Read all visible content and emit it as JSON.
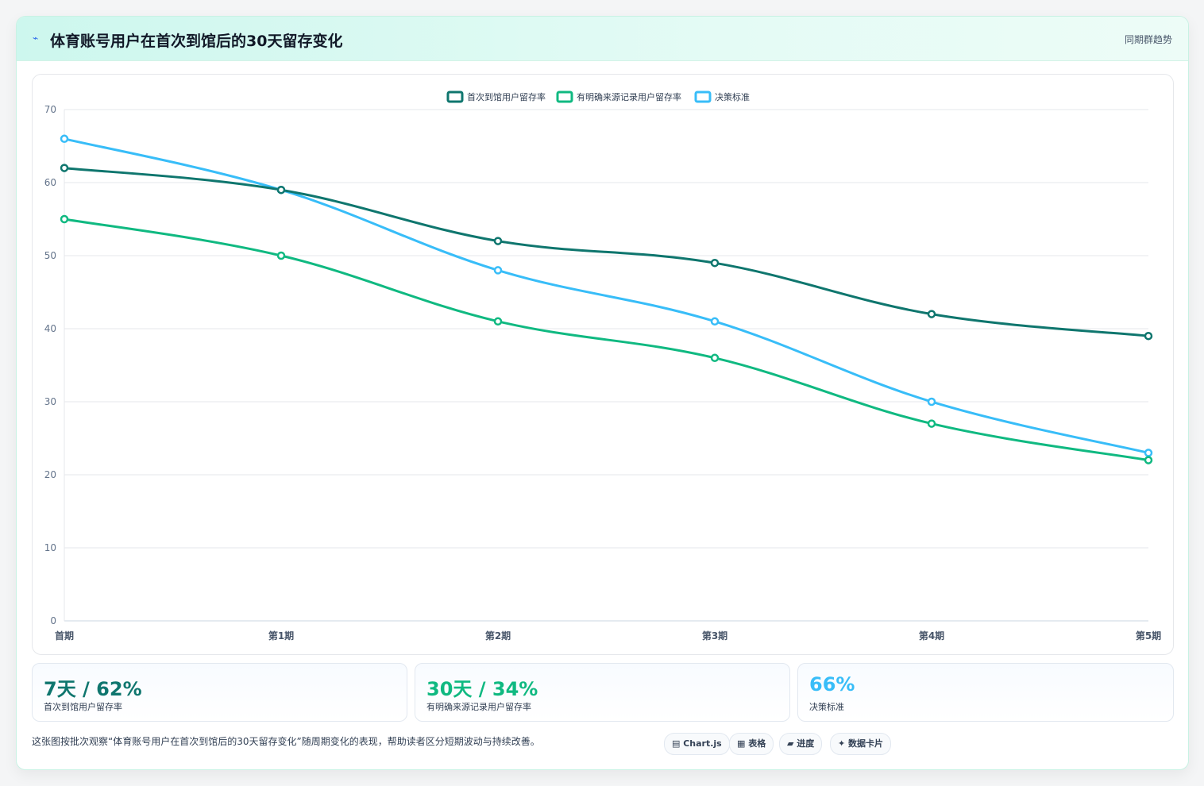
{
  "header": {
    "icon": "lightning-icon",
    "title": "体育账号用户在首次到馆后的30天留存变化",
    "right_label": "同期群趋势"
  },
  "chart_data": {
    "type": "line",
    "categories": [
      "首期",
      "第1期",
      "第2期",
      "第3期",
      "第4期",
      "第5期"
    ],
    "series": [
      {
        "name": "首次到馆用户留存率",
        "color": "#0f766e",
        "values": [
          62,
          59,
          52,
          49,
          42,
          39
        ]
      },
      {
        "name": "有明确来源记录用户留存率",
        "color": "#10b981",
        "values": [
          55,
          50,
          41,
          36,
          27,
          22
        ]
      },
      {
        "name": "决策标准",
        "color": "#38bdf8",
        "values": [
          66,
          59,
          48,
          41,
          30,
          23
        ]
      }
    ],
    "ylim": [
      0,
      70
    ],
    "yticks": [
      0,
      10,
      20,
      30,
      40,
      50,
      60,
      70
    ],
    "grid": true,
    "legend": "top-center"
  },
  "stats": [
    {
      "value": "7天 / 62%",
      "label": "首次到馆用户留存率",
      "color": "#0f766e"
    },
    {
      "value": "30天 / 34%",
      "label": "有明确来源记录用户留存率",
      "color": "#10b981"
    },
    {
      "value": "66%",
      "label": "决策标准",
      "color": "#38bdf8"
    }
  ],
  "footer": {
    "description": "这张图按批次观察“体育账号用户在首次到馆后的30天留存变化”随周期变化的表现，帮助读者区分短期波动与持续改善。",
    "pills": [
      "▤ Chart.js",
      "▦ 表格",
      "▰ 进度",
      "✦ 数据卡片"
    ]
  }
}
